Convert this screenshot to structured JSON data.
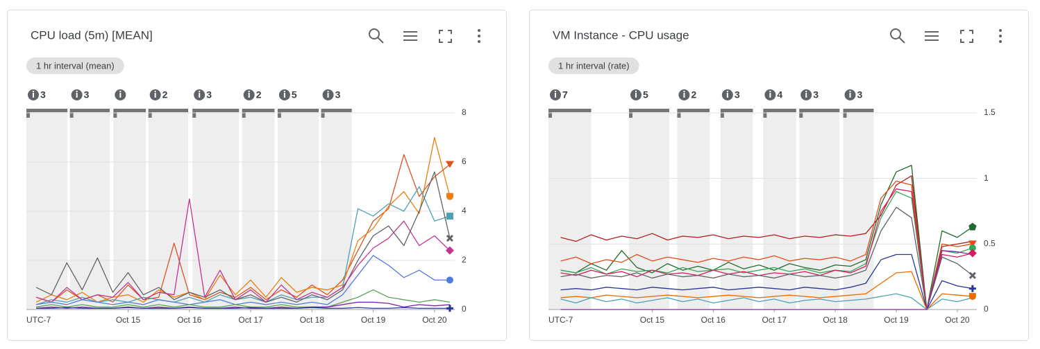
{
  "chart_data": [
    {
      "type": "line",
      "title": "CPU load (5m) [MEAN]",
      "interval_label": "1 hr interval (mean)",
      "x_axis_label": "UTC-7",
      "x": [
        13.5,
        13.75,
        14,
        14.25,
        14.5,
        14.75,
        15,
        15.25,
        15.5,
        15.75,
        16,
        16.25,
        16.5,
        16.75,
        17,
        17.25,
        17.5,
        17.75,
        18,
        18.25,
        18.5,
        18.75,
        19,
        19.25,
        19.5,
        19.75,
        20,
        20.25
      ],
      "xlim": [
        13.34,
        20.33
      ],
      "xticks": [
        {
          "value": 15,
          "label": "Oct 15"
        },
        {
          "value": 16,
          "label": "Oct 16"
        },
        {
          "value": 17,
          "label": "Oct 17"
        },
        {
          "value": 18,
          "label": "Oct 18"
        },
        {
          "value": 19,
          "label": "Oct 19"
        },
        {
          "value": 20,
          "label": "Oct 20"
        }
      ],
      "ylim": [
        0,
        8
      ],
      "yticks": [
        0,
        2,
        4,
        6,
        8
      ],
      "grid": true,
      "annotations": [
        {
          "label": "3",
          "x": [
            13.34,
            14.01
          ]
        },
        {
          "label": "3",
          "x": [
            14.05,
            14.7
          ]
        },
        {
          "x": [
            14.76,
            15.29
          ]
        },
        {
          "label": "2",
          "x": [
            15.33,
            15.98
          ]
        },
        {
          "label": "3",
          "x": [
            16.05,
            16.81
          ]
        },
        {
          "label": "2",
          "x": [
            16.86,
            17.39
          ]
        },
        {
          "label": "5",
          "x": [
            17.44,
            18.11
          ]
        },
        {
          "label": "3",
          "x": [
            18.15,
            18.65
          ]
        }
      ],
      "series": [
        {
          "color": "#d9541e",
          "marker": "triangle-down",
          "values": [
            0.5,
            0.3,
            0.8,
            0.4,
            0.6,
            0.3,
            1.0,
            0.4,
            0.5,
            2.7,
            0.6,
            0.4,
            0.7,
            0.5,
            0.9,
            0.4,
            0.8,
            0.5,
            1.0,
            0.6,
            1.2,
            2.4,
            3.6,
            4.1,
            6.3,
            4.6,
            5.4,
            5.9
          ]
        },
        {
          "color": "#ef7d0a",
          "marker": "shield",
          "values": [
            0.3,
            0.6,
            0.4,
            0.7,
            0.3,
            0.5,
            0.6,
            0.3,
            0.8,
            0.5,
            0.7,
            0.4,
            1.4,
            0.6,
            1.2,
            0.5,
            1.3,
            0.7,
            0.9,
            0.8,
            1.0,
            2.8,
            3.3,
            4.2,
            4.8,
            3.9,
            7.0,
            4.6
          ]
        },
        {
          "color": "#4fa0b5",
          "marker": "square",
          "values": [
            0.2,
            0.4,
            0.3,
            0.5,
            0.3,
            0.4,
            0.3,
            0.5,
            0.4,
            0.3,
            0.5,
            0.3,
            0.6,
            0.4,
            0.5,
            0.3,
            0.6,
            0.4,
            0.5,
            0.5,
            0.9,
            4.1,
            3.8,
            4.3,
            4.0,
            5.0,
            3.6,
            3.8
          ]
        },
        {
          "color": "#5f6368",
          "marker": "x",
          "values": [
            0.9,
            0.6,
            1.9,
            0.8,
            2.1,
            0.7,
            1.5,
            0.6,
            0.9,
            0.4,
            0.7,
            0.5,
            0.8,
            0.4,
            0.6,
            0.3,
            0.5,
            0.3,
            0.6,
            0.4,
            0.8,
            2.0,
            3.0,
            3.4,
            2.6,
            4.0,
            5.6,
            2.9
          ]
        },
        {
          "color": "#c2358f",
          "marker": "diamond",
          "values": [
            0.5,
            0.3,
            0.9,
            0.4,
            0.6,
            0.5,
            1.1,
            0.4,
            0.7,
            0.6,
            4.5,
            0.5,
            1.6,
            0.4,
            0.8,
            0.3,
            1.0,
            0.4,
            0.7,
            0.5,
            0.9,
            1.8,
            2.5,
            2.9,
            3.6,
            2.6,
            3.0,
            2.4
          ]
        },
        {
          "color": "#4f7be0",
          "marker": "circle",
          "values": [
            0.2,
            0.3,
            0.2,
            0.4,
            0.3,
            0.2,
            0.3,
            0.2,
            0.4,
            0.3,
            0.2,
            0.3,
            0.4,
            0.2,
            0.3,
            0.2,
            0.3,
            0.2,
            0.3,
            0.2,
            0.6,
            1.4,
            2.2,
            1.8,
            1.3,
            1.6,
            1.2,
            1.2
          ]
        },
        {
          "color": "#5aa454",
          "values": [
            0.1,
            0.2,
            0.1,
            0.2,
            0.1,
            0.1,
            0.2,
            0.1,
            0.2,
            0.1,
            0.2,
            0.1,
            0.1,
            0.2,
            0.1,
            0.1,
            0.2,
            0.1,
            0.1,
            0.1,
            0.3,
            0.5,
            0.8,
            0.5,
            0.4,
            0.3,
            0.4,
            0.3
          ]
        },
        {
          "color": "#7b1fa2",
          "values": [
            0.05,
            0.1,
            0.05,
            0.1,
            0.05,
            0.05,
            0.1,
            0.05,
            0.1,
            0.05,
            0.1,
            0.05,
            0.05,
            0.1,
            0.05,
            0.05,
            0.1,
            0.05,
            0.1,
            0.1,
            0.2,
            0.3,
            0.3,
            0.25,
            0.1,
            0.2,
            0.15,
            0.2
          ]
        },
        {
          "color": "#283593",
          "marker": "plus",
          "values": [
            0.05,
            0.05,
            0.08,
            0.05,
            0.05,
            0.05,
            0.08,
            0.05,
            0.05,
            0.05,
            0.08,
            0.05,
            0.05,
            0.05,
            0.08,
            0.05,
            0.05,
            0.05,
            0.08,
            0.05,
            0.05,
            0.08,
            0.05,
            0.05,
            0.08,
            0.05,
            0.05,
            0.05
          ]
        }
      ]
    },
    {
      "type": "line",
      "title": "VM Instance - CPU usage",
      "interval_label": "1 hr interval (rate)",
      "x_axis_label": "UTC-7",
      "x": [
        13.5,
        13.75,
        14,
        14.25,
        14.5,
        14.75,
        15,
        15.25,
        15.5,
        15.75,
        16,
        16.25,
        16.5,
        16.75,
        17,
        17.25,
        17.5,
        17.75,
        18,
        18.25,
        18.5,
        18.75,
        19,
        19.25,
        19.5,
        19.75,
        20,
        20.25
      ],
      "xlim": [
        13.3,
        20.32
      ],
      "xticks": [
        {
          "value": 15,
          "label": "Oct 15"
        },
        {
          "value": 16,
          "label": "Oct 16"
        },
        {
          "value": 17,
          "label": "Oct 17"
        },
        {
          "value": 18,
          "label": "Oct 18"
        },
        {
          "value": 19,
          "label": "Oct 19"
        },
        {
          "value": 20,
          "label": "Oct 20"
        }
      ],
      "ylim": [
        0,
        1.5
      ],
      "yticks": [
        0,
        0.5,
        1,
        1.5
      ],
      "grid": true,
      "annotations": [
        {
          "label": "7",
          "x": [
            13.3,
            14.0
          ]
        },
        {
          "label": "5",
          "x": [
            14.62,
            15.28
          ]
        },
        {
          "label": "2",
          "x": [
            15.41,
            15.94
          ]
        },
        {
          "label": "3",
          "x": [
            16.12,
            16.65
          ]
        },
        {
          "label": "4",
          "x": [
            16.82,
            17.36
          ]
        },
        {
          "label": "3",
          "x": [
            17.41,
            18.07
          ]
        },
        {
          "label": "3",
          "x": [
            18.13,
            18.63
          ]
        }
      ],
      "series": [
        {
          "color": "#b71c1c",
          "values": [
            0.55,
            0.52,
            0.57,
            0.53,
            0.56,
            0.54,
            0.58,
            0.53,
            0.56,
            0.55,
            0.57,
            0.54,
            0.56,
            0.55,
            0.57,
            0.54,
            0.56,
            0.55,
            0.57,
            0.56,
            0.58,
            0.72,
            0.95,
            1.02,
            0.0,
            0.48,
            0.5,
            0.52
          ]
        },
        {
          "color": "#1e6b2c",
          "marker": "pentagon",
          "values": [
            0.3,
            0.28,
            0.35,
            0.3,
            0.45,
            0.32,
            0.28,
            0.35,
            0.3,
            0.33,
            0.3,
            0.36,
            0.31,
            0.34,
            0.3,
            0.35,
            0.32,
            0.3,
            0.34,
            0.33,
            0.38,
            0.8,
            1.05,
            1.1,
            0.0,
            0.6,
            0.55,
            0.63
          ]
        },
        {
          "color": "#e64a19",
          "marker": "triangle-down",
          "values": [
            0.37,
            0.4,
            0.35,
            0.38,
            0.36,
            0.42,
            0.37,
            0.4,
            0.38,
            0.36,
            0.39,
            0.37,
            0.4,
            0.38,
            0.41,
            0.37,
            0.39,
            0.38,
            0.4,
            0.37,
            0.42,
            0.85,
            0.98,
            0.95,
            0.0,
            0.5,
            0.48,
            0.5
          ]
        },
        {
          "color": "#34a853",
          "marker": "circle",
          "values": [
            0.3,
            0.28,
            0.32,
            0.27,
            0.31,
            0.29,
            0.3,
            0.28,
            0.32,
            0.29,
            0.3,
            0.31,
            0.28,
            0.3,
            0.32,
            0.29,
            0.31,
            0.28,
            0.3,
            0.29,
            0.35,
            0.7,
            0.9,
            0.85,
            0.0,
            0.45,
            0.43,
            0.47
          ]
        },
        {
          "color": "#d81b60",
          "marker": "diamond",
          "values": [
            0.28,
            0.26,
            0.3,
            0.27,
            0.29,
            0.25,
            0.3,
            0.27,
            0.28,
            0.26,
            0.3,
            0.27,
            0.29,
            0.26,
            0.28,
            0.27,
            0.29,
            0.26,
            0.3,
            0.28,
            0.33,
            0.75,
            0.92,
            0.9,
            0.0,
            0.42,
            0.4,
            0.43
          ]
        },
        {
          "color": "#5f6368",
          "marker": "x",
          "values": [
            0.25,
            0.27,
            0.24,
            0.26,
            0.25,
            0.28,
            0.24,
            0.27,
            0.25,
            0.26,
            0.24,
            0.27,
            0.25,
            0.26,
            0.24,
            0.27,
            0.25,
            0.26,
            0.24,
            0.26,
            0.3,
            0.6,
            0.78,
            0.7,
            0.0,
            0.4,
            0.35,
            0.26
          ]
        },
        {
          "color": "#283593",
          "marker": "plus",
          "values": [
            0.15,
            0.16,
            0.15,
            0.17,
            0.16,
            0.15,
            0.17,
            0.16,
            0.15,
            0.16,
            0.17,
            0.15,
            0.16,
            0.17,
            0.16,
            0.15,
            0.17,
            0.16,
            0.15,
            0.17,
            0.2,
            0.38,
            0.42,
            0.42,
            0.0,
            0.22,
            0.18,
            0.16
          ]
        },
        {
          "color": "#ef6c00",
          "marker": "shield",
          "values": [
            0.09,
            0.1,
            0.09,
            0.11,
            0.1,
            0.09,
            0.1,
            0.11,
            0.1,
            0.09,
            0.1,
            0.11,
            0.1,
            0.09,
            0.1,
            0.11,
            0.1,
            0.09,
            0.1,
            0.11,
            0.12,
            0.2,
            0.28,
            0.29,
            0.0,
            0.12,
            0.11,
            0.1
          ]
        },
        {
          "color": "#4fa0b5",
          "values": [
            0.08,
            0.05,
            0.09,
            0.06,
            0.08,
            0.05,
            0.07,
            0.09,
            0.06,
            0.08,
            0.05,
            0.07,
            0.09,
            0.06,
            0.08,
            0.05,
            0.07,
            0.08,
            0.06,
            0.07,
            0.08,
            0.1,
            0.12,
            0.09,
            0.0,
            0.08,
            0.06,
            0.09
          ]
        },
        {
          "color": "#8e24aa",
          "values": [
            0,
            0,
            0,
            0,
            0,
            0,
            0,
            0,
            0,
            0,
            0,
            0,
            0,
            0,
            0,
            0,
            0,
            0,
            0,
            0,
            0,
            0,
            0,
            0,
            0,
            0.45,
            0.44,
            0.42
          ]
        }
      ]
    }
  ]
}
